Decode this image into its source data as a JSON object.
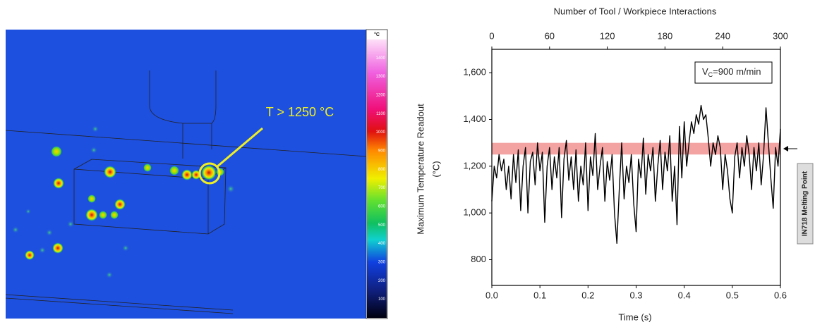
{
  "thermal_image": {
    "colorbar_unit": "°C",
    "colorbar_lim": [
      0,
      1500
    ],
    "colorbar_ticks": [
      1400,
      1300,
      1200,
      1100,
      1000,
      900,
      800,
      700,
      600,
      500,
      400,
      300,
      200,
      100
    ],
    "annotation": "T > 1250 °C"
  },
  "chart_data": {
    "type": "line",
    "title": "Number of Tool / Workpiece Interactions",
    "x_label": "Time (s)",
    "y_label": [
      "Maximum Temperature Readout",
      "(°C)"
    ],
    "legend_text": {
      "main": "V",
      "sub": "C",
      "rest": "=900 m/min"
    },
    "band": {
      "from": 1250,
      "to": 1300,
      "color": "#f4a3a3",
      "label": "IN718 Melting Point"
    },
    "color": "#000000",
    "xlim": [
      0,
      0.6
    ],
    "xticks": [
      {
        "value": 0,
        "label": "0.0"
      },
      0.1,
      0.2,
      0.3,
      0.4,
      0.5,
      0.6
    ],
    "x2lim": [
      0,
      300
    ],
    "x2ticks": [
      0,
      60,
      120,
      180,
      240,
      300
    ],
    "ylim": [
      690,
      1700
    ],
    "yticks": [
      800,
      {
        "value": 1000,
        "label": "1,000"
      },
      {
        "value": 1200,
        "label": "1,200"
      },
      {
        "value": 1400,
        "label": "1,400"
      },
      {
        "value": 1600,
        "label": "1,600"
      }
    ],
    "x": [
      0,
      0.005,
      0.01,
      0.015,
      0.02,
      0.025,
      0.03,
      0.035,
      0.04,
      0.045,
      0.05,
      0.055,
      0.06,
      0.065,
      0.07,
      0.075,
      0.08,
      0.085,
      0.09,
      0.095,
      0.1,
      0.105,
      0.11,
      0.115,
      0.12,
      0.125,
      0.13,
      0.135,
      0.14,
      0.145,
      0.15,
      0.155,
      0.16,
      0.165,
      0.17,
      0.175,
      0.18,
      0.185,
      0.19,
      0.195,
      0.2,
      0.205,
      0.21,
      0.215,
      0.22,
      0.225,
      0.23,
      0.235,
      0.24,
      0.245,
      0.25,
      0.255,
      0.26,
      0.265,
      0.27,
      0.275,
      0.28,
      0.285,
      0.29,
      0.295,
      0.3,
      0.305,
      0.31,
      0.315,
      0.32,
      0.325,
      0.33,
      0.335,
      0.34,
      0.345,
      0.35,
      0.355,
      0.36,
      0.365,
      0.37,
      0.375,
      0.38,
      0.385,
      0.39,
      0.395,
      0.4,
      0.405,
      0.41,
      0.415,
      0.42,
      0.425,
      0.43,
      0.435,
      0.44,
      0.445,
      0.45,
      0.455,
      0.46,
      0.465,
      0.47,
      0.475,
      0.48,
      0.485,
      0.49,
      0.495,
      0.5,
      0.505,
      0.51,
      0.515,
      0.52,
      0.525,
      0.53,
      0.535,
      0.54,
      0.545,
      0.55,
      0.555,
      0.56,
      0.565,
      0.57,
      0.575,
      0.58,
      0.585,
      0.59,
      0.595,
      0.6
    ],
    "values": [
      1050,
      1200,
      1150,
      1250,
      1180,
      1230,
      1100,
      1200,
      1060,
      1250,
      1130,
      1270,
      1010,
      1200,
      1280,
      1000,
      1220,
      1260,
      1120,
      1300,
      1180,
      1260,
      960,
      1200,
      1280,
      1100,
      1240,
      1150,
      1280,
      980,
      1230,
      1310,
      1140,
      1240,
      1100,
      1270,
      1050,
      1200,
      1120,
      1300,
      1010,
      1240,
      1160,
      1340,
      1100,
      1200,
      1280,
      1050,
      1220,
      1140,
      1250,
      1000,
      870,
      1100,
      1300,
      1060,
      1200,
      1130,
      1250,
      1040,
      920,
      1230,
      1150,
      1320,
      1080,
      1250,
      1180,
      1280,
      1050,
      1200,
      1310,
      1100,
      1260,
      1180,
      1330,
      1050,
      1200,
      950,
      1370,
      1150,
      1390,
      1200,
      1300,
      1390,
      1340,
      1420,
      1380,
      1460,
      1400,
      1420,
      1320,
      1200,
      1300,
      1250,
      1330,
      1280,
      1100,
      1250,
      1180,
      1060,
      1000,
      1240,
      1300,
      1150,
      1280,
      1200,
      1330,
      1250,
      1100,
      1280,
      1180,
      1300,
      1120,
      1250,
      1450,
      1300,
      1150,
      1020,
      1280,
      1200,
      1360
    ]
  }
}
